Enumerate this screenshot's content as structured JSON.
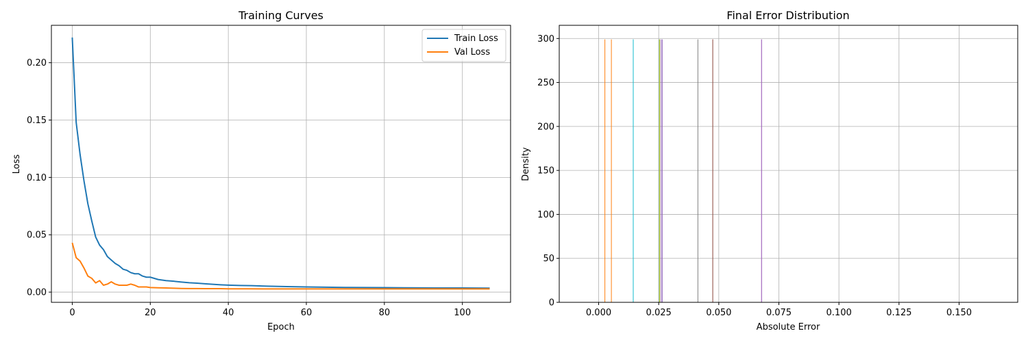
{
  "chart_data": [
    {
      "type": "line",
      "title": "Training Curves",
      "xlabel": "Epoch",
      "ylabel": "Loss",
      "xlim": [
        -5.35,
        112.35
      ],
      "ylim": [
        -0.0089,
        0.2326
      ],
      "xticks": [
        0,
        20,
        40,
        60,
        80,
        100
      ],
      "xtick_labels": [
        "0",
        "20",
        "40",
        "60",
        "80",
        "100"
      ],
      "yticks": [
        0.0,
        0.05,
        0.1,
        0.15,
        0.2
      ],
      "ytick_labels": [
        "0.00",
        "0.05",
        "0.10",
        "0.15",
        "0.20"
      ],
      "grid": true,
      "legend": "top-right",
      "series": [
        {
          "name": "Train Loss",
          "color": "#1f77b4",
          "x": [
            0,
            1,
            2,
            3,
            4,
            5,
            6,
            7,
            8,
            9,
            10,
            11,
            12,
            13,
            14,
            15,
            16,
            17,
            18,
            19,
            20,
            22,
            24,
            26,
            28,
            30,
            32,
            34,
            36,
            38,
            40,
            43,
            46,
            50,
            55,
            60,
            65,
            70,
            75,
            80,
            85,
            90,
            95,
            100,
            107
          ],
          "y": [
            0.222,
            0.148,
            0.12,
            0.097,
            0.077,
            0.062,
            0.048,
            0.041,
            0.037,
            0.031,
            0.028,
            0.025,
            0.023,
            0.02,
            0.019,
            0.017,
            0.016,
            0.016,
            0.014,
            0.013,
            0.013,
            0.011,
            0.01,
            0.0095,
            0.0088,
            0.0082,
            0.0078,
            0.0073,
            0.0068,
            0.0064,
            0.0061,
            0.0058,
            0.0056,
            0.0052,
            0.0048,
            0.0045,
            0.0043,
            0.0041,
            0.004,
            0.0039,
            0.0038,
            0.0037,
            0.0036,
            0.0036,
            0.0035
          ]
        },
        {
          "name": "Val Loss",
          "color": "#ff7f0e",
          "x": [
            0,
            1,
            2,
            3,
            4,
            5,
            6,
            7,
            8,
            9,
            10,
            11,
            12,
            13,
            14,
            15,
            16,
            17,
            18,
            19,
            20,
            22,
            24,
            26,
            28,
            30,
            32,
            34,
            36,
            38,
            40,
            45,
            50,
            55,
            60,
            70,
            80,
            90,
            100,
            107
          ],
          "y": [
            0.043,
            0.03,
            0.027,
            0.021,
            0.014,
            0.012,
            0.008,
            0.01,
            0.006,
            0.007,
            0.009,
            0.007,
            0.006,
            0.006,
            0.006,
            0.007,
            0.006,
            0.0045,
            0.0045,
            0.0045,
            0.004,
            0.0038,
            0.0036,
            0.0034,
            0.0032,
            0.0031,
            0.0031,
            0.003,
            0.003,
            0.003,
            0.0029,
            0.0029,
            0.0028,
            0.0028,
            0.0028,
            0.0028,
            0.0028,
            0.0028,
            0.0028,
            0.0028
          ]
        }
      ]
    },
    {
      "type": "bar",
      "title": "Final Error Distribution",
      "xlabel": "Absolute Error",
      "ylabel": "Density",
      "xlim": [
        -0.0164,
        0.1744
      ],
      "ylim": [
        0,
        315
      ],
      "xticks": [
        0.0,
        0.025,
        0.05,
        0.075,
        0.1,
        0.125,
        0.15
      ],
      "xtick_labels": [
        "0.000",
        "0.025",
        "0.050",
        "0.075",
        "0.100",
        "0.125",
        "0.150"
      ],
      "yticks": [
        0,
        50,
        100,
        150,
        200,
        250,
        300
      ],
      "ytick_labels": [
        "0",
        "50",
        "100",
        "150",
        "200",
        "250",
        "300"
      ],
      "grid": true,
      "series": [
        {
          "color": "#1f77b4",
          "x": [
            0.0144
          ],
          "values": [
            299
          ]
        },
        {
          "color": "#ff7f0e",
          "x": [
            0.0053
          ],
          "values": [
            299
          ]
        },
        {
          "color": "#2ca02c",
          "x": [
            0.0253
          ],
          "values": [
            299
          ]
        },
        {
          "color": "#d62728",
          "x": [
            0.0475
          ],
          "values": [
            299
          ]
        },
        {
          "color": "#9467bd",
          "x": [
            0.026
          ],
          "values": [
            299
          ]
        },
        {
          "color": "#8c564b",
          "x": [
            0.0475
          ],
          "values": [
            299
          ]
        },
        {
          "color": "#e377c2",
          "x": [
            0.0678
          ],
          "values": [
            299
          ]
        },
        {
          "color": "#7f7f7f",
          "x": [
            0.0413
          ],
          "values": [
            299
          ]
        },
        {
          "color": "#bcbd22",
          "x": [
            0.0254
          ],
          "values": [
            299
          ]
        },
        {
          "color": "#17becf",
          "x": [
            0.0144
          ],
          "values": [
            299
          ]
        },
        {
          "color": "#ff7f0e",
          "x": [
            0.0026
          ],
          "values": [
            299
          ]
        },
        {
          "color": "#9467bd",
          "x": [
            0.0265
          ],
          "values": [
            299
          ]
        },
        {
          "color": "#9467bd",
          "x": [
            0.0678
          ],
          "values": [
            299
          ]
        }
      ]
    }
  ]
}
